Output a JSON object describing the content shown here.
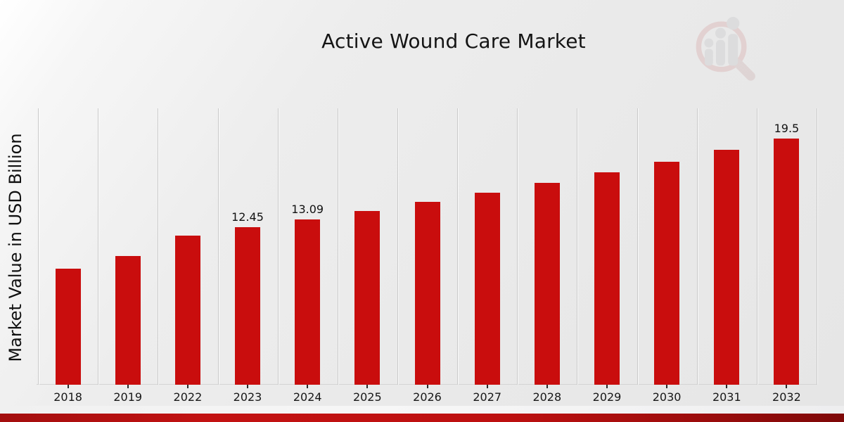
{
  "page": {
    "title": "Active Wound Care Market"
  },
  "chart_data": {
    "type": "bar",
    "title": "Active Wound Care Market",
    "xlabel": "",
    "ylabel": "Market Value in USD Billion",
    "categories": [
      "2018",
      "2019",
      "2022",
      "2023",
      "2024",
      "2025",
      "2026",
      "2027",
      "2028",
      "2029",
      "2030",
      "2031",
      "2032"
    ],
    "values": [
      9.2,
      10.2,
      11.8,
      12.45,
      13.09,
      13.76,
      14.47,
      15.21,
      16.0,
      16.8,
      17.67,
      18.57,
      19.5
    ],
    "bar_labels": [
      "",
      "",
      "",
      "12.45",
      "13.09",
      "",
      "",
      "",
      "",
      "",
      "",
      "",
      "19.5"
    ],
    "ylim": [
      0,
      22.1
    ],
    "y_tick_labels_visible": false,
    "grid": "vertical-category-boundaries",
    "legend": "none",
    "bar_color": "#c90d0d"
  },
  "watermark": {
    "icon": "magnifier-bar-chart-logo"
  },
  "colors": {
    "bar": "#c90d0d",
    "ribbon_red": "#b50f0f",
    "gridline": "#c9c9c9",
    "background_light": "#ffffff",
    "background_dark": "#e6e6e6",
    "text": "#161616"
  }
}
